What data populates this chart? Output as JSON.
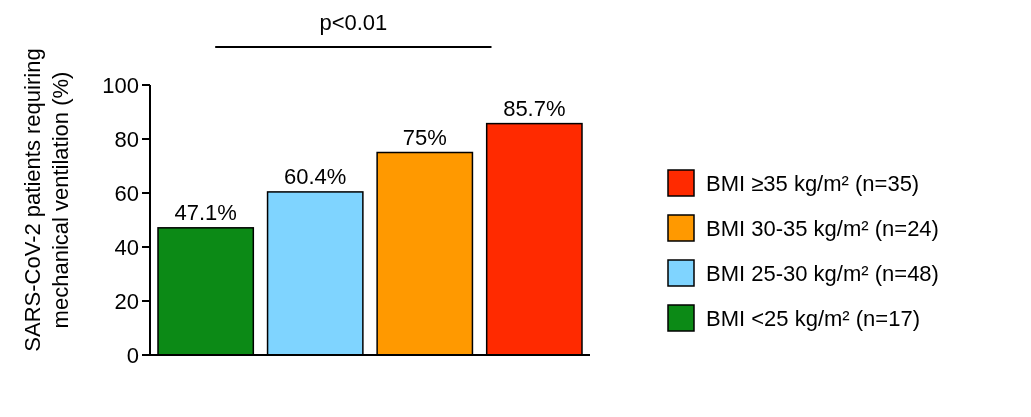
{
  "chart_data": {
    "type": "bar",
    "ylabel": "SARS-CoV-2 patients requiring\nmechanical ventilation (%)",
    "categories": [
      null,
      null,
      null,
      null
    ],
    "series": [
      {
        "name": "BMI ≥35 kg/m² (n=35)",
        "color": "#ff2a00",
        "values": [
          null,
          null,
          null,
          85.7
        ],
        "value_labels": [
          null,
          null,
          null,
          "85.7%"
        ]
      },
      {
        "name": "BMI 30-35 kg/m² (n=24)",
        "color": "#ff9900",
        "values": [
          null,
          null,
          75,
          null
        ],
        "value_labels": [
          null,
          null,
          "75%",
          null
        ]
      },
      {
        "name": "BMI 25-30 kg/m² (n=48)",
        "color": "#7fd4ff",
        "values": [
          null,
          60.4,
          null,
          null
        ],
        "value_labels": [
          null,
          "60.4%",
          null,
          null
        ]
      },
      {
        "name": "BMI <25 kg/m² (n=17)",
        "color": "#0c8a16",
        "values": [
          47.1,
          null,
          null,
          null
        ],
        "value_labels": [
          "47.1%",
          null,
          null,
          null
        ]
      }
    ],
    "ylim": [
      0,
      100
    ],
    "yticks": [
      0,
      20,
      40,
      60,
      80,
      100
    ],
    "legend": "right",
    "grid": false,
    "annotations": [
      "p<0.01"
    ]
  }
}
